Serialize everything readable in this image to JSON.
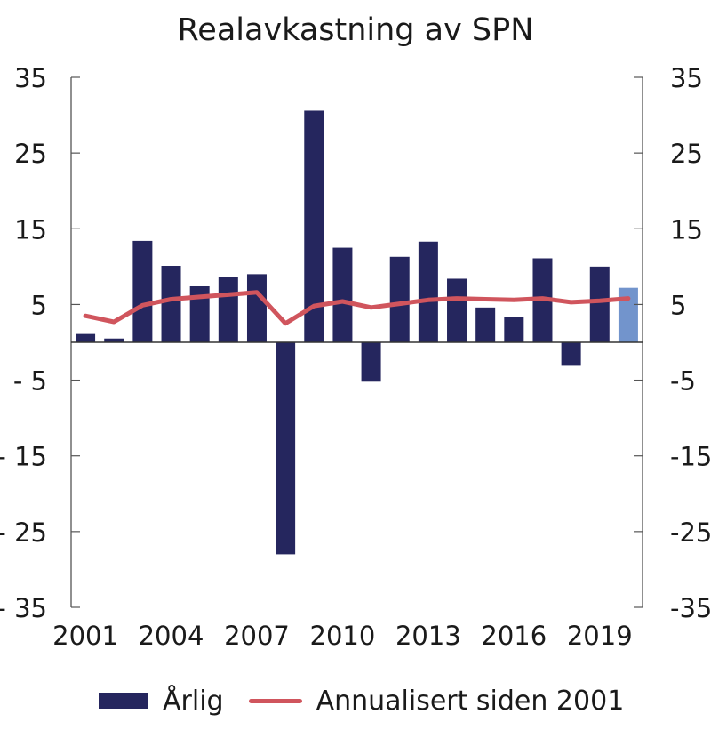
{
  "chart_data": {
    "type": "bar",
    "title": "Realavkastning av SPN",
    "xlabel": "",
    "ylabel": "",
    "ylim": [
      -35,
      35
    ],
    "y_ticks_left": [
      "35",
      "25",
      "15",
      "5",
      "- 5",
      "- 15",
      "- 25",
      "- 35"
    ],
    "y_ticks_right": [
      "35",
      "25",
      "15",
      "5",
      "-5",
      "-15",
      "-25",
      "-35"
    ],
    "y_tick_values": [
      35,
      25,
      15,
      5,
      -5,
      -15,
      -25,
      -35
    ],
    "x_tick_labels": [
      "2001",
      "2004",
      "2007",
      "2010",
      "2013",
      "2016",
      "2019"
    ],
    "categories": [
      "2001",
      "2002",
      "2003",
      "2004",
      "2005",
      "2006",
      "2007",
      "2008",
      "2009",
      "2010",
      "2011",
      "2012",
      "2013",
      "2014",
      "2015",
      "2016",
      "2017",
      "2018",
      "2019",
      "2020"
    ],
    "series": [
      {
        "name": "Årlig",
        "type": "bar",
        "color": "#25265e",
        "highlight_color": "#7294cc",
        "highlight_index": 19,
        "values": [
          1.1,
          0.5,
          13.4,
          10.1,
          7.4,
          8.6,
          9.0,
          -28.0,
          30.6,
          12.5,
          -5.2,
          11.3,
          13.3,
          8.4,
          4.6,
          3.4,
          11.1,
          -3.1,
          10.0,
          7.2
        ]
      },
      {
        "name": "Annualisert siden 2001",
        "type": "line",
        "color": "#d0555d",
        "values": [
          3.5,
          2.7,
          4.9,
          5.7,
          6.0,
          6.3,
          6.6,
          2.5,
          4.8,
          5.4,
          4.6,
          5.1,
          5.6,
          5.8,
          5.7,
          5.6,
          5.8,
          5.3,
          5.5,
          5.8
        ]
      }
    ],
    "grid": false,
    "legend_position": "bottom"
  }
}
